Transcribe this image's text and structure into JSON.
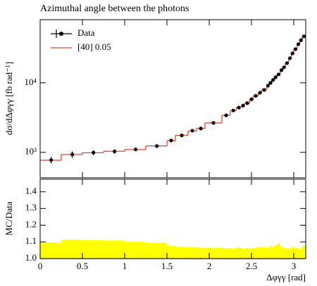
{
  "chart_data": [
    {
      "type": "step",
      "title": "Azimuthal angle between the photons",
      "ylabel": "dσ/dΔφγγ [fb rad⁻¹]",
      "xlim": [
        0,
        3.1416
      ],
      "ylim": [
        430,
        81000
      ],
      "log_y": true,
      "yticks": [
        {
          "value": 1000,
          "label": "10³"
        },
        {
          "value": 10000,
          "label": "10⁴"
        }
      ],
      "legend": "upper left",
      "series": [
        {
          "name": "Data",
          "color": "#000000",
          "x": [
            0.13,
            0.38,
            0.63,
            0.88,
            1.13,
            1.38,
            1.55,
            1.675,
            1.8,
            1.9,
            2.05,
            2.2,
            2.285,
            2.35,
            2.4,
            2.45,
            2.5,
            2.55,
            2.6,
            2.65,
            2.695,
            2.725,
            2.755,
            2.785,
            2.82,
            2.855,
            2.885,
            2.92,
            2.955,
            2.985,
            3.02,
            3.055,
            3.085,
            3.12
          ],
          "values": [
            775,
            933,
            990,
            1030,
            1100,
            1230,
            1480,
            1750,
            2050,
            2200,
            2650,
            3400,
            4000,
            4400,
            4700,
            5100,
            5800,
            6500,
            7200,
            7900,
            9100,
            10000,
            11000,
            12000,
            13200,
            15200,
            16700,
            19200,
            22600,
            26500,
            30500,
            36000,
            41000,
            46600
          ],
          "yerr": [
            80,
            95,
            80,
            70,
            55,
            45,
            55,
            60,
            65,
            70,
            80,
            100,
            110,
            120,
            130,
            140,
            160,
            180,
            200,
            220,
            250,
            270,
            300,
            320,
            350,
            400,
            430,
            480,
            550,
            620,
            700,
            800,
            900,
            1000
          ]
        },
        {
          "name": "[40] 0.05",
          "color": "#e8422b",
          "bins": [
            0,
            0.25,
            0.5,
            0.75,
            1.0,
            1.25,
            1.5,
            1.6,
            1.75,
            1.85,
            1.95,
            2.15,
            2.25,
            2.32,
            2.38,
            2.42,
            2.48,
            2.52,
            2.58,
            2.62,
            2.68,
            2.71,
            2.74,
            2.77,
            2.8,
            2.84,
            2.87,
            2.9,
            2.94,
            2.97,
            3.0,
            3.04,
            3.07,
            3.1,
            3.1416
          ],
          "values": [
            770,
            930,
            985,
            1035,
            1095,
            1235,
            1470,
            1760,
            2040,
            2210,
            2640,
            3420,
            3980,
            4420,
            4680,
            5120,
            5780,
            6520,
            7180,
            7920,
            9080,
            10050,
            10950,
            12050,
            13150,
            15250,
            16650,
            19250,
            22550,
            26550,
            30450,
            36050,
            40950,
            46700
          ]
        }
      ]
    },
    {
      "type": "band",
      "ylabel": "MC/Data",
      "xlabel": "Δφγγ [rad]",
      "xlim": [
        0,
        3.1416
      ],
      "xticks": [
        0,
        0.5,
        1,
        1.5,
        2,
        2.5,
        3
      ],
      "ylim": [
        1.0,
        1.475
      ],
      "yticks": [
        {
          "value": 1.0,
          "label": "1.0"
        },
        1.1,
        1.2,
        1.3,
        1.4
      ],
      "band_color": "#ffff00",
      "line_color": "#e8422b",
      "bins": [
        0,
        0.25,
        0.5,
        0.75,
        1.0,
        1.25,
        1.5,
        1.6,
        1.75,
        1.85,
        1.95,
        2.15,
        2.25,
        2.32,
        2.38,
        2.42,
        2.48,
        2.52,
        2.58,
        2.62,
        2.68,
        2.71,
        2.74,
        2.77,
        2.8,
        2.84,
        2.87,
        2.9,
        2.94,
        2.97,
        3.0,
        3.04,
        3.07,
        3.1,
        3.1416
      ],
      "band_upper": [
        1.097,
        1.113,
        1.11,
        1.108,
        1.1,
        1.095,
        1.075,
        1.07,
        1.068,
        1.065,
        1.065,
        1.062,
        1.06,
        1.065,
        1.058,
        1.062,
        1.06,
        1.065,
        1.07,
        1.068,
        1.06,
        1.075,
        1.07,
        1.08,
        1.09,
        1.07,
        1.065,
        1.06,
        1.058,
        1.07,
        1.065,
        1.062,
        1.06,
        1.075
      ],
      "ratio": [
        1,
        1,
        1,
        1,
        1,
        1,
        1,
        1,
        1,
        1,
        1,
        1,
        1,
        1,
        1,
        1,
        1,
        1,
        1,
        1,
        1,
        1,
        1,
        1,
        1,
        1,
        1,
        1,
        1,
        1,
        1,
        1,
        1,
        1
      ]
    }
  ]
}
